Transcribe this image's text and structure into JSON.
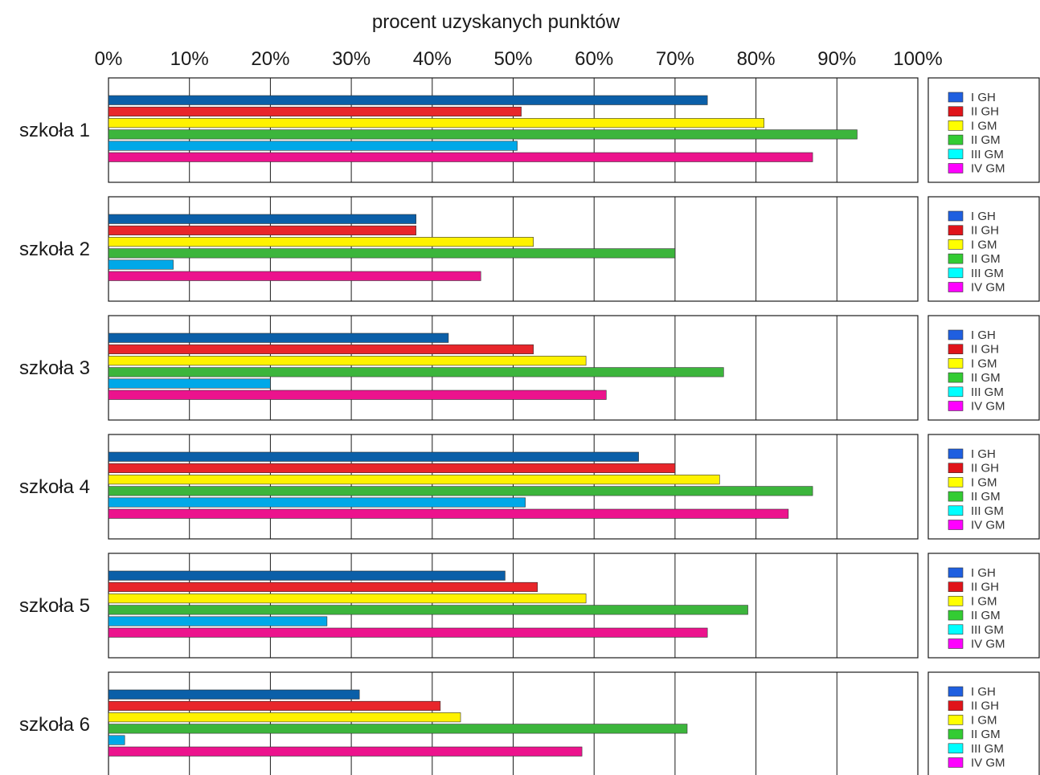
{
  "chart_data": {
    "type": "bar",
    "orientation": "horizontal",
    "title": "",
    "xlabel": "procent uzyskanych punktów",
    "ylabel": "",
    "xlim": [
      0,
      100
    ],
    "x_ticks": [
      "0%",
      "10%",
      "20%",
      "30%",
      "40%",
      "50%",
      "60%",
      "70%",
      "80%",
      "90%",
      "100%"
    ],
    "grid": "vertical",
    "legend_placement": "right",
    "categories": [
      "szkoła 1",
      "szkoła 2",
      "szkoła 3",
      "szkoła 4",
      "szkoła 5",
      "szkoła 6"
    ],
    "legend": [
      "I GH",
      "II GH",
      "I GM",
      "II GM",
      "III GM",
      "IV GM"
    ],
    "series": [
      {
        "values": [
          74,
          38,
          42,
          65.5,
          49,
          31
        ],
        "color": "#0b5fa8"
      },
      {
        "values": [
          51,
          38,
          52.5,
          70,
          53,
          41
        ],
        "color": "#e8262b"
      },
      {
        "values": [
          81,
          52.5,
          59,
          75.5,
          59,
          43.5
        ],
        "color": "#fff200"
      },
      {
        "values": [
          92.5,
          70,
          76,
          87,
          79,
          71.5
        ],
        "color": "#3cb53c"
      },
      {
        "values": [
          50.5,
          8,
          20,
          51.5,
          27,
          2
        ],
        "color": "#00a8e8"
      },
      {
        "values": [
          87,
          46,
          61.5,
          84,
          74,
          58.5
        ],
        "color": "#ec138d"
      }
    ],
    "legend_colors": [
      "#1f5fe0",
      "#e0141a",
      "#ffff00",
      "#33cc33",
      "#00ffff",
      "#ff00ff"
    ]
  }
}
